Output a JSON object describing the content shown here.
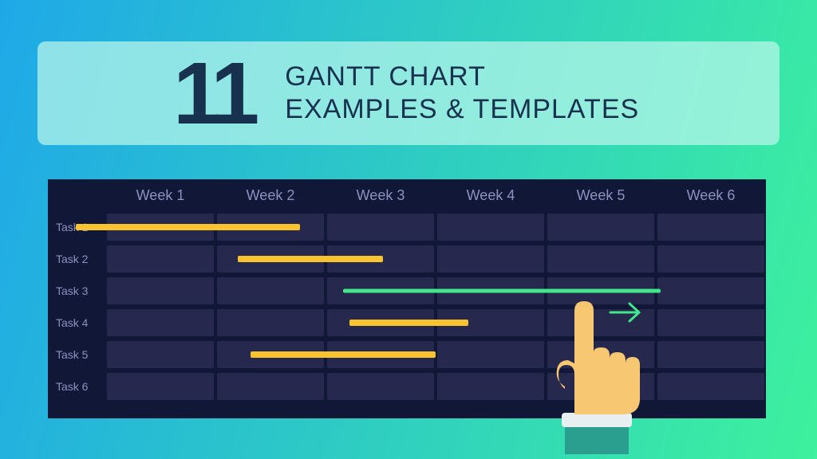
{
  "background": {
    "gradient_start": "#1fa8e8",
    "gradient_end": "#3df19d"
  },
  "title_box": {
    "bg_color": "rgba(184, 246, 234, 0.72)",
    "number": "11",
    "number_color": "#17314f",
    "line1": "GANTT CHART",
    "line2": "EXAMPLES & TEMPLATES",
    "text_color": "#17314f"
  },
  "chart": {
    "bg_color": "#111736",
    "cell_color": "#27284e",
    "header_text_color": "#8b92c0",
    "label_text_color": "#8b92c0",
    "weeks": [
      "Week 1",
      "Week 2",
      "Week 3",
      "Week 4",
      "Week 5",
      "Week 6"
    ],
    "tasks": [
      "Task 1",
      "Task 2",
      "Task 3",
      "Task 4",
      "Task 5",
      "Task 6"
    ],
    "bars": [
      {
        "row": 0,
        "start_pct": -4.5,
        "width_pct": 34,
        "color": "#f7c430",
        "height": 8
      },
      {
        "row": 1,
        "start_pct": 20,
        "width_pct": 22,
        "color": "#f7c430",
        "height": 8
      },
      {
        "row": 2,
        "start_pct": 36,
        "width_pct": 48,
        "color": "#42e68b",
        "height": 5
      },
      {
        "row": 3,
        "start_pct": 37,
        "width_pct": 18,
        "color": "#f7c430",
        "height": 8
      },
      {
        "row": 4,
        "start_pct": 22,
        "width_pct": 28,
        "color": "#f7c430",
        "height": 8
      }
    ]
  },
  "arrow": {
    "color": "#42e68b"
  },
  "hand": {
    "skin_color": "#f7c772",
    "sleeve_color": "#2a9e8f",
    "cuff_color": "#e8eff1"
  }
}
